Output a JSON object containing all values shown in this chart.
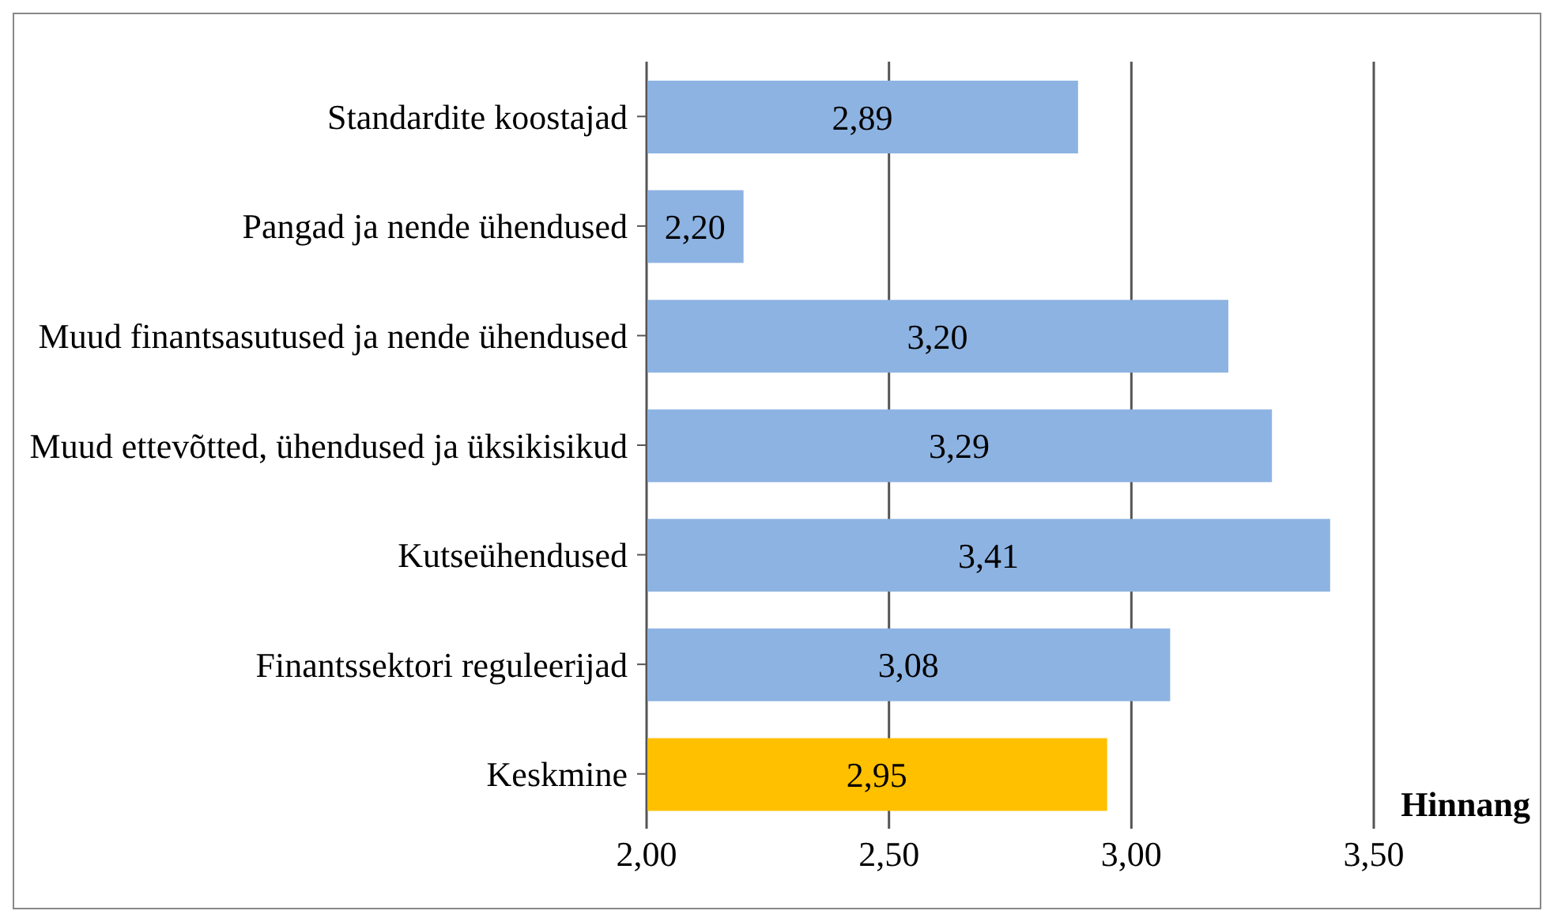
{
  "chart_data": {
    "type": "bar",
    "orientation": "horizontal",
    "xlabel": "Hinnang",
    "categories": [
      "Standardite koostajad",
      "Pangad ja nende ühendused",
      "Muud finantsasutused ja nende ühendused",
      "Muud ettevõtted, ühendused ja üksikisikud",
      "Kutseühendused",
      "Finantssektori reguleerijad",
      "Keskmine"
    ],
    "values": [
      2.89,
      2.2,
      3.2,
      3.29,
      3.41,
      3.08,
      2.95
    ],
    "value_labels": [
      "2,89",
      "2,20",
      "3,20",
      "3,29",
      "3,41",
      "3,08",
      "2,95"
    ],
    "colors": [
      "#8db3e2",
      "#8db3e2",
      "#8db3e2",
      "#8db3e2",
      "#8db3e2",
      "#8db3e2",
      "#ffc000"
    ],
    "xlim": [
      2,
      3.5
    ],
    "xticks": [
      {
        "value": 2,
        "label": "2,00"
      },
      {
        "value": 2.5,
        "label": "2,50"
      },
      {
        "value": 3,
        "label": "3,00"
      },
      {
        "value": 3.5,
        "label": "3,50"
      }
    ],
    "grid": "x"
  }
}
